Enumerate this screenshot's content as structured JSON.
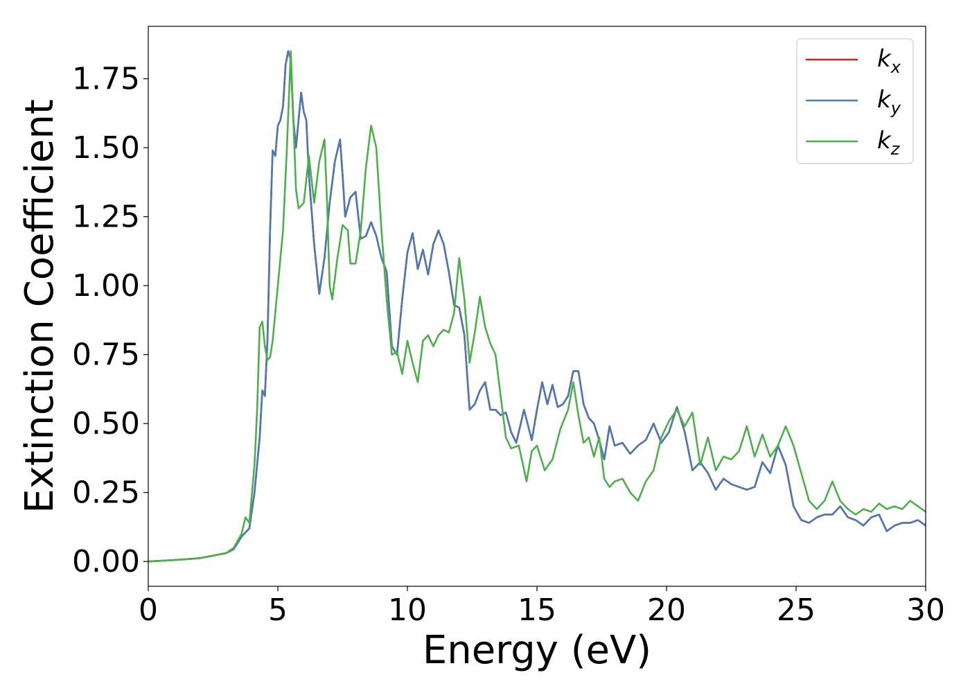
{
  "chart_data": {
    "type": "line",
    "xlabel": "Energy (eV)",
    "ylabel": "Extinction Coefficient",
    "xlim": [
      0,
      30
    ],
    "ylim": [
      -0.09,
      1.94
    ],
    "xticks": [
      0,
      5,
      10,
      15,
      20,
      25,
      30
    ],
    "yticks": [
      0.0,
      0.25,
      0.5,
      0.75,
      1.0,
      1.25,
      1.5,
      1.75
    ],
    "xtick_labels": [
      "0",
      "5",
      "10",
      "15",
      "20",
      "25",
      "30"
    ],
    "ytick_labels": [
      "0.00",
      "0.25",
      "0.50",
      "0.75",
      "1.00",
      "1.25",
      "1.50",
      "1.75"
    ],
    "grid": false,
    "legend_position": "top-right",
    "series": [
      {
        "name": "k_x",
        "label_main": "k",
        "label_sub": "x",
        "color": "#e41a1c",
        "x": [
          0,
          1,
          2,
          3,
          3.3,
          3.6,
          3.9,
          4.1,
          4.3,
          4.4,
          4.5,
          4.6,
          4.7,
          4.8,
          4.9,
          5.0,
          5.1,
          5.2,
          5.3,
          5.4,
          5.5,
          5.6,
          5.7,
          5.8,
          5.9,
          6.0,
          6.1,
          6.2,
          6.4,
          6.6,
          6.8,
          7.0,
          7.2,
          7.4,
          7.5,
          7.6,
          7.8,
          8.0,
          8.2,
          8.4,
          8.6,
          8.8,
          9.0,
          9.2,
          9.4,
          9.6,
          9.8,
          10.0,
          10.2,
          10.4,
          10.6,
          10.8,
          11.0,
          11.2,
          11.4,
          11.6,
          11.8,
          12.0,
          12.2,
          12.4,
          12.6,
          12.8,
          13.0,
          13.2,
          13.4,
          13.6,
          13.8,
          14.0,
          14.2,
          14.5,
          14.8,
          15.0,
          15.2,
          15.4,
          15.6,
          15.8,
          16.0,
          16.2,
          16.4,
          16.6,
          16.8,
          17.0,
          17.2,
          17.4,
          17.6,
          17.8,
          18.0,
          18.3,
          18.6,
          18.9,
          19.2,
          19.5,
          19.8,
          20.1,
          20.4,
          20.7,
          21.0,
          21.3,
          21.6,
          21.9,
          22.2,
          22.5,
          22.8,
          23.1,
          23.4,
          23.7,
          24.0,
          24.3,
          24.6,
          24.9,
          25.2,
          25.5,
          25.8,
          26.1,
          26.4,
          26.7,
          27.0,
          27.3,
          27.6,
          27.9,
          28.2,
          28.5,
          28.8,
          29.1,
          29.4,
          29.7,
          30.0
        ],
        "y": [
          0.0,
          0.005,
          0.012,
          0.03,
          0.045,
          0.09,
          0.12,
          0.25,
          0.45,
          0.62,
          0.6,
          0.8,
          1.2,
          1.49,
          1.47,
          1.58,
          1.6,
          1.65,
          1.8,
          1.85,
          1.82,
          1.6,
          1.5,
          1.6,
          1.7,
          1.63,
          1.6,
          1.4,
          1.15,
          0.97,
          1.1,
          1.3,
          1.45,
          1.53,
          1.4,
          1.25,
          1.32,
          1.34,
          1.17,
          1.18,
          1.23,
          1.18,
          1.1,
          1.05,
          0.78,
          0.75,
          0.95,
          1.12,
          1.19,
          1.06,
          1.13,
          1.04,
          1.15,
          1.2,
          1.15,
          1.05,
          0.93,
          0.92,
          0.82,
          0.55,
          0.57,
          0.62,
          0.65,
          0.55,
          0.55,
          0.53,
          0.54,
          0.47,
          0.43,
          0.55,
          0.44,
          0.55,
          0.65,
          0.57,
          0.64,
          0.56,
          0.57,
          0.6,
          0.69,
          0.69,
          0.57,
          0.52,
          0.5,
          0.44,
          0.37,
          0.49,
          0.42,
          0.43,
          0.39,
          0.42,
          0.44,
          0.5,
          0.43,
          0.47,
          0.56,
          0.47,
          0.33,
          0.36,
          0.32,
          0.26,
          0.3,
          0.28,
          0.27,
          0.26,
          0.27,
          0.36,
          0.32,
          0.42,
          0.35,
          0.2,
          0.15,
          0.14,
          0.16,
          0.17,
          0.17,
          0.2,
          0.16,
          0.15,
          0.13,
          0.16,
          0.17,
          0.11,
          0.13,
          0.14,
          0.14,
          0.15,
          0.13
        ]
      },
      {
        "name": "k_y",
        "label_main": "k",
        "label_sub": "y",
        "color": "#4a7ab5",
        "x": [
          0,
          1,
          2,
          3,
          3.3,
          3.6,
          3.9,
          4.1,
          4.3,
          4.4,
          4.5,
          4.6,
          4.7,
          4.8,
          4.9,
          5.0,
          5.1,
          5.2,
          5.3,
          5.4,
          5.5,
          5.6,
          5.7,
          5.8,
          5.9,
          6.0,
          6.1,
          6.2,
          6.4,
          6.6,
          6.8,
          7.0,
          7.2,
          7.4,
          7.5,
          7.6,
          7.8,
          8.0,
          8.2,
          8.4,
          8.6,
          8.8,
          9.0,
          9.2,
          9.4,
          9.6,
          9.8,
          10.0,
          10.2,
          10.4,
          10.6,
          10.8,
          11.0,
          11.2,
          11.4,
          11.6,
          11.8,
          12.0,
          12.2,
          12.4,
          12.6,
          12.8,
          13.0,
          13.2,
          13.4,
          13.6,
          13.8,
          14.0,
          14.2,
          14.5,
          14.8,
          15.0,
          15.2,
          15.4,
          15.6,
          15.8,
          16.0,
          16.2,
          16.4,
          16.6,
          16.8,
          17.0,
          17.2,
          17.4,
          17.6,
          17.8,
          18.0,
          18.3,
          18.6,
          18.9,
          19.2,
          19.5,
          19.8,
          20.1,
          20.4,
          20.7,
          21.0,
          21.3,
          21.6,
          21.9,
          22.2,
          22.5,
          22.8,
          23.1,
          23.4,
          23.7,
          24.0,
          24.3,
          24.6,
          24.9,
          25.2,
          25.5,
          25.8,
          26.1,
          26.4,
          26.7,
          27.0,
          27.3,
          27.6,
          27.9,
          28.2,
          28.5,
          28.8,
          29.1,
          29.4,
          29.7,
          30.0
        ],
        "y": [
          0.0,
          0.005,
          0.012,
          0.03,
          0.045,
          0.09,
          0.12,
          0.25,
          0.45,
          0.62,
          0.6,
          0.8,
          1.2,
          1.49,
          1.47,
          1.58,
          1.6,
          1.65,
          1.8,
          1.85,
          1.82,
          1.6,
          1.5,
          1.6,
          1.7,
          1.63,
          1.6,
          1.4,
          1.15,
          0.97,
          1.1,
          1.3,
          1.45,
          1.53,
          1.4,
          1.25,
          1.32,
          1.34,
          1.17,
          1.18,
          1.23,
          1.18,
          1.1,
          1.05,
          0.78,
          0.75,
          0.95,
          1.12,
          1.19,
          1.06,
          1.13,
          1.04,
          1.15,
          1.2,
          1.15,
          1.05,
          0.93,
          0.92,
          0.82,
          0.55,
          0.57,
          0.62,
          0.65,
          0.55,
          0.55,
          0.53,
          0.54,
          0.47,
          0.43,
          0.55,
          0.44,
          0.55,
          0.65,
          0.57,
          0.64,
          0.56,
          0.57,
          0.6,
          0.69,
          0.69,
          0.57,
          0.52,
          0.5,
          0.44,
          0.37,
          0.49,
          0.42,
          0.43,
          0.39,
          0.42,
          0.44,
          0.5,
          0.43,
          0.47,
          0.56,
          0.47,
          0.33,
          0.36,
          0.32,
          0.26,
          0.3,
          0.28,
          0.27,
          0.26,
          0.27,
          0.36,
          0.32,
          0.42,
          0.35,
          0.2,
          0.15,
          0.14,
          0.16,
          0.17,
          0.17,
          0.2,
          0.16,
          0.15,
          0.13,
          0.16,
          0.17,
          0.11,
          0.13,
          0.14,
          0.14,
          0.15,
          0.13
        ]
      },
      {
        "name": "k_z",
        "label_main": "k",
        "label_sub": "z",
        "color": "#4daf4a",
        "x": [
          0,
          1,
          2,
          3,
          3.3,
          3.6,
          3.75,
          3.9,
          4.1,
          4.2,
          4.3,
          4.4,
          4.5,
          4.6,
          4.7,
          4.8,
          5.0,
          5.2,
          5.35,
          5.5,
          5.6,
          5.7,
          5.8,
          6.0,
          6.2,
          6.4,
          6.6,
          6.8,
          6.9,
          7.0,
          7.1,
          7.3,
          7.5,
          7.7,
          7.8,
          8.0,
          8.2,
          8.4,
          8.6,
          8.8,
          9.0,
          9.2,
          9.4,
          9.6,
          9.8,
          10.0,
          10.2,
          10.4,
          10.6,
          10.8,
          11.0,
          11.2,
          11.4,
          11.6,
          11.8,
          12.0,
          12.2,
          12.4,
          12.6,
          12.8,
          13.0,
          13.2,
          13.4,
          13.6,
          13.8,
          14.0,
          14.3,
          14.6,
          14.8,
          15.0,
          15.3,
          15.6,
          15.9,
          16.2,
          16.4,
          16.6,
          16.8,
          17.0,
          17.2,
          17.4,
          17.6,
          17.8,
          18.0,
          18.3,
          18.6,
          18.9,
          19.2,
          19.5,
          19.8,
          20.1,
          20.4,
          20.7,
          21.0,
          21.3,
          21.6,
          21.9,
          22.2,
          22.5,
          22.8,
          23.1,
          23.4,
          23.7,
          24.0,
          24.3,
          24.6,
          24.9,
          25.2,
          25.5,
          25.8,
          26.1,
          26.4,
          26.7,
          27.0,
          27.3,
          27.6,
          27.9,
          28.2,
          28.5,
          28.8,
          29.1,
          29.4,
          29.7,
          30.0
        ],
        "y": [
          0.0,
          0.005,
          0.012,
          0.03,
          0.05,
          0.1,
          0.16,
          0.14,
          0.35,
          0.55,
          0.85,
          0.87,
          0.78,
          0.73,
          0.74,
          0.8,
          1.0,
          1.2,
          1.5,
          1.85,
          1.6,
          1.35,
          1.28,
          1.3,
          1.47,
          1.3,
          1.45,
          1.53,
          1.3,
          1.0,
          0.95,
          1.1,
          1.22,
          1.2,
          1.08,
          1.08,
          1.2,
          1.43,
          1.58,
          1.5,
          1.2,
          0.95,
          0.75,
          0.76,
          0.68,
          0.8,
          0.72,
          0.65,
          0.8,
          0.82,
          0.78,
          0.82,
          0.84,
          0.83,
          0.9,
          1.1,
          0.95,
          0.72,
          0.83,
          0.96,
          0.85,
          0.79,
          0.75,
          0.6,
          0.45,
          0.41,
          0.42,
          0.29,
          0.4,
          0.42,
          0.33,
          0.37,
          0.48,
          0.55,
          0.65,
          0.53,
          0.43,
          0.45,
          0.38,
          0.45,
          0.3,
          0.27,
          0.29,
          0.3,
          0.25,
          0.22,
          0.29,
          0.33,
          0.45,
          0.51,
          0.55,
          0.49,
          0.54,
          0.35,
          0.45,
          0.33,
          0.38,
          0.37,
          0.4,
          0.49,
          0.38,
          0.46,
          0.38,
          0.42,
          0.49,
          0.42,
          0.32,
          0.22,
          0.19,
          0.22,
          0.29,
          0.22,
          0.19,
          0.17,
          0.19,
          0.18,
          0.21,
          0.19,
          0.2,
          0.19,
          0.22,
          0.2,
          0.18
        ]
      }
    ]
  }
}
